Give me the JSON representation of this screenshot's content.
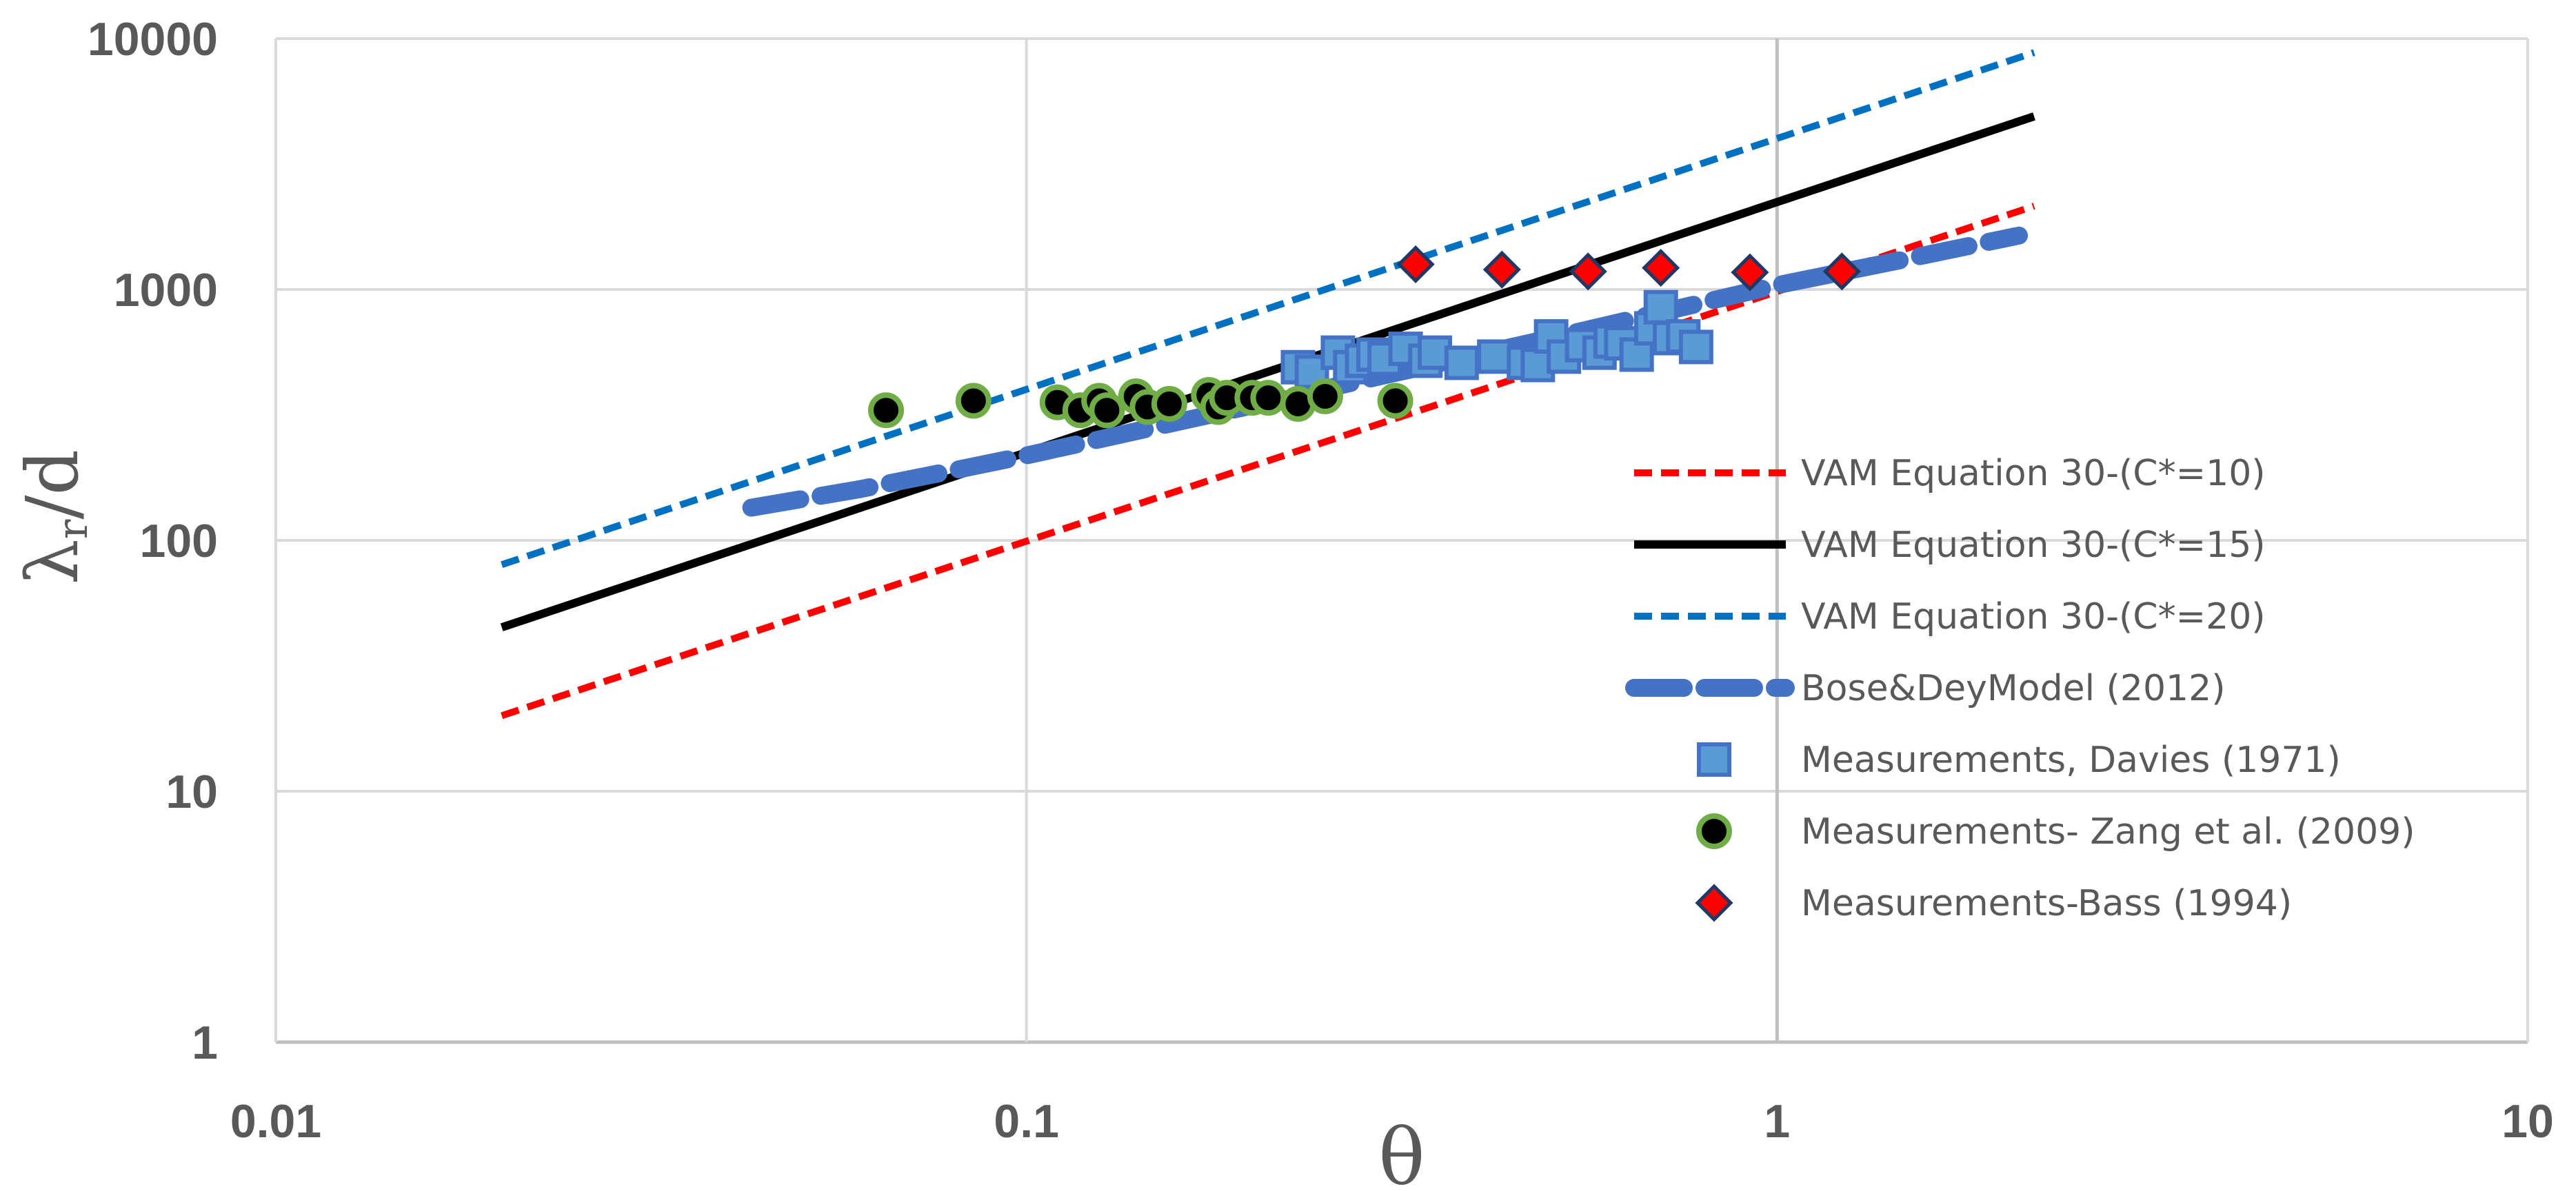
{
  "chart_data": {
    "type": "scatter",
    "title": "",
    "xlabel": "θ",
    "ylabel": "λr/d",
    "ylabel_main": "λ",
    "ylabel_sub": "r",
    "ylabel_tail": "/d",
    "xscale": "log",
    "yscale": "log",
    "xlim": [
      0.01,
      10
    ],
    "ylim": [
      1,
      10000
    ],
    "grid": true,
    "legend_position": "right",
    "x_ticks": [
      0.01,
      0.1,
      1,
      10
    ],
    "x_tick_labels": [
      "0.01",
      "0.1",
      "1",
      "10"
    ],
    "y_ticks": [
      1,
      10,
      100,
      1000,
      10000
    ],
    "y_tick_labels": [
      "1",
      "10",
      "100",
      "1000",
      "10000"
    ],
    "series": [
      {
        "name": "VAM Equation 30-(C*=10)",
        "kind": "line",
        "style": "dashed",
        "color": "#ff0000",
        "x": [
          0.02,
          2.2
        ],
        "y": [
          20,
          2150
        ]
      },
      {
        "name": "VAM Equation 30-(C*=15)",
        "kind": "line",
        "style": "solid",
        "color": "#000000",
        "x": [
          0.02,
          2.2
        ],
        "y": [
          45,
          4900
        ]
      },
      {
        "name": "VAM Equation 30-(C*=20)",
        "kind": "line",
        "style": "dashed",
        "color": "#0070c0",
        "x": [
          0.02,
          2.2
        ],
        "y": [
          80,
          8800
        ]
      },
      {
        "name": "Bose&DeyModel (2012)",
        "kind": "line",
        "style": "long-dash",
        "color": "#4472c4",
        "x": [
          0.043,
          0.06,
          0.08,
          0.1,
          0.15,
          0.2,
          0.3,
          0.5,
          0.7,
          1.0,
          1.5,
          2.1
        ],
        "y": [
          135,
          160,
          190,
          218,
          285,
          345,
          455,
          640,
          810,
          1040,
          1330,
          1640
        ]
      },
      {
        "name": "Measurements, Davies (1971)",
        "kind": "scatter",
        "marker": "square",
        "color": "#5b9bd5",
        "edge": "#4472c4",
        "x": [
          0.23,
          0.24,
          0.26,
          0.27,
          0.28,
          0.29,
          0.3,
          0.32,
          0.34,
          0.35,
          0.38,
          0.42,
          0.46,
          0.48,
          0.5,
          0.52,
          0.55,
          0.58,
          0.6,
          0.62,
          0.65,
          0.68,
          0.7,
          0.72,
          0.75,
          0.78
        ],
        "y": [
          490,
          470,
          560,
          490,
          520,
          550,
          530,
          580,
          520,
          560,
          510,
          540,
          510,
          500,
          650,
          540,
          600,
          560,
          620,
          610,
          550,
          700,
          850,
          640,
          650,
          590
        ]
      },
      {
        "name": "Measurements- Zang et al. (2009)",
        "kind": "scatter",
        "marker": "circle",
        "color": "#000000",
        "edge": "#70ad47",
        "x": [
          0.065,
          0.085,
          0.11,
          0.118,
          0.125,
          0.128,
          0.14,
          0.145,
          0.155,
          0.175,
          0.18,
          0.185,
          0.2,
          0.21,
          0.23,
          0.25,
          0.31
        ],
        "y": [
          330,
          360,
          355,
          330,
          360,
          330,
          375,
          340,
          350,
          380,
          340,
          370,
          370,
          370,
          350,
          375,
          360
        ]
      },
      {
        "name": "Measurements-Bass (1994)",
        "kind": "scatter",
        "marker": "diamond",
        "color": "#ff0000",
        "edge": "#1f3864",
        "x": [
          0.33,
          0.43,
          0.56,
          0.7,
          0.92,
          1.22
        ],
        "y": [
          1260,
          1200,
          1180,
          1220,
          1170,
          1180
        ]
      }
    ]
  },
  "colors": {
    "grid": "#d9d9d9",
    "axis_line": "#bfbfbf",
    "text": "#595959"
  }
}
